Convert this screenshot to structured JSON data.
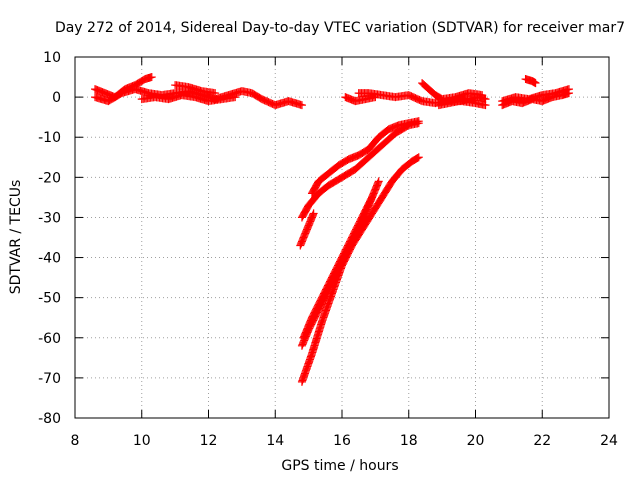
{
  "chart_data": {
    "type": "scatter",
    "title": "Day 272 of 2014, Sidereal Day-to-day VTEC variation (SDTVAR) for receiver mar7",
    "xlabel": "GPS time / hours",
    "ylabel": "SDTVAR / TECUs",
    "xlim": [
      8,
      24
    ],
    "ylim": [
      -80,
      10
    ],
    "xticks": [
      8,
      10,
      12,
      14,
      16,
      18,
      20,
      22,
      24
    ],
    "yticks": [
      10,
      0,
      -10,
      -20,
      -30,
      -40,
      -50,
      -60,
      -70,
      -80
    ],
    "grid": true,
    "marker": "plus",
    "color": "#ff0000",
    "series": [
      {
        "x": [
          8.6,
          8.9,
          9.2,
          9.5,
          9.8,
          10.1,
          10.3
        ],
        "y": [
          2,
          1,
          0,
          2,
          3,
          4.5,
          5
        ]
      },
      {
        "x": [
          8.6,
          9.0,
          9.4,
          9.8,
          10.2,
          10.6,
          11.0,
          11.4,
          11.8,
          12.2,
          12.6,
          13.0,
          13.3,
          13.6,
          14.0,
          14.4,
          14.8
        ],
        "y": [
          0,
          -1,
          1,
          2,
          1,
          0.5,
          1,
          1.5,
          0.5,
          -0.5,
          0.5,
          1.5,
          1,
          -0.5,
          -2,
          -1,
          -2
        ]
      },
      {
        "x": [
          10.0,
          10.4,
          10.8,
          11.2,
          11.6,
          12.0,
          12.4,
          12.8
        ],
        "y": [
          -0.5,
          0,
          -0.5,
          0.5,
          0,
          -1,
          -0.5,
          0
        ]
      },
      {
        "x": [
          11.0,
          11.4,
          11.8,
          12.2
        ],
        "y": [
          3,
          2.5,
          1.5,
          1
        ]
      },
      {
        "x": [
          16.1,
          16.4,
          16.7,
          17.0
        ],
        "y": [
          0,
          -1,
          -0.5,
          0
        ]
      },
      {
        "x": [
          16.5,
          16.8,
          17.2,
          17.6,
          18.0,
          18.4,
          18.8,
          19.2,
          19.6,
          20.0,
          20.3
        ],
        "y": [
          1,
          1,
          0.5,
          0,
          0.5,
          -1,
          -1.5,
          -1,
          -1,
          -1.5,
          -2
        ]
      },
      {
        "x": [
          18.4,
          18.6,
          18.8,
          19.0,
          19.4,
          19.8,
          20.2
        ],
        "y": [
          3.5,
          2,
          0.5,
          -0.5,
          0,
          1,
          0.5
        ]
      },
      {
        "x": [
          18.9,
          19.2,
          19.5,
          19.8,
          20.1,
          20.3
        ],
        "y": [
          -2,
          -1.5,
          -1,
          -0.5,
          0,
          -0.5
        ]
      },
      {
        "x": [
          20.8,
          21.1,
          21.4,
          21.7,
          22.0,
          22.3,
          22.6,
          22.8
        ],
        "y": [
          -2,
          -1,
          -1.5,
          -0.5,
          -1,
          0,
          0.5,
          1
        ]
      },
      {
        "x": [
          20.8,
          21.2,
          21.6,
          22.0,
          22.4,
          22.8
        ],
        "y": [
          -1,
          0,
          -0.5,
          0.5,
          1,
          2
        ]
      },
      {
        "x": [
          21.5,
          21.7,
          21.8
        ],
        "y": [
          4.5,
          4,
          3.5
        ]
      },
      {
        "x": [
          14.8,
          15.0,
          15.3,
          15.6,
          16.0,
          16.4,
          16.8,
          17.2,
          17.6,
          18.0,
          18.3
        ],
        "y": [
          -30,
          -27,
          -24,
          -22,
          -20,
          -18,
          -15,
          -12,
          -9,
          -7,
          -6.5
        ]
      },
      {
        "x": [
          15.1,
          15.3,
          15.6,
          15.9,
          16.2,
          16.5,
          16.8,
          17.1,
          17.4,
          17.7,
          18.0,
          18.3
        ],
        "y": [
          -24,
          -21,
          -19,
          -17,
          -15.5,
          -14.5,
          -13,
          -10,
          -8,
          -7,
          -6.5,
          -6
        ]
      },
      {
        "x": [
          14.75,
          14.85,
          14.95,
          15.05,
          15.15
        ],
        "y": [
          -37,
          -35,
          -33,
          -31,
          -29
        ]
      },
      {
        "x": [
          14.8,
          15.0,
          15.3,
          15.6,
          15.9,
          16.2,
          16.5,
          16.8,
          17.1
        ],
        "y": [
          -62,
          -58,
          -53,
          -48,
          -43,
          -38,
          -33,
          -27,
          -21
        ]
      },
      {
        "x": [
          14.8,
          15.1,
          15.4,
          15.7,
          16.0,
          16.3,
          16.6,
          16.9,
          17.2,
          17.5,
          17.8,
          18.1,
          18.3
        ],
        "y": [
          -71,
          -64,
          -56,
          -49,
          -42,
          -37,
          -33,
          -29,
          -25,
          -21,
          -18,
          -16,
          -15
        ]
      },
      {
        "x": [
          14.85,
          15.1,
          15.4,
          15.7,
          16.0,
          16.3,
          16.6,
          16.9
        ],
        "y": [
          -60,
          -55,
          -50,
          -45,
          -40,
          -35,
          -30,
          -25
        ]
      }
    ]
  }
}
